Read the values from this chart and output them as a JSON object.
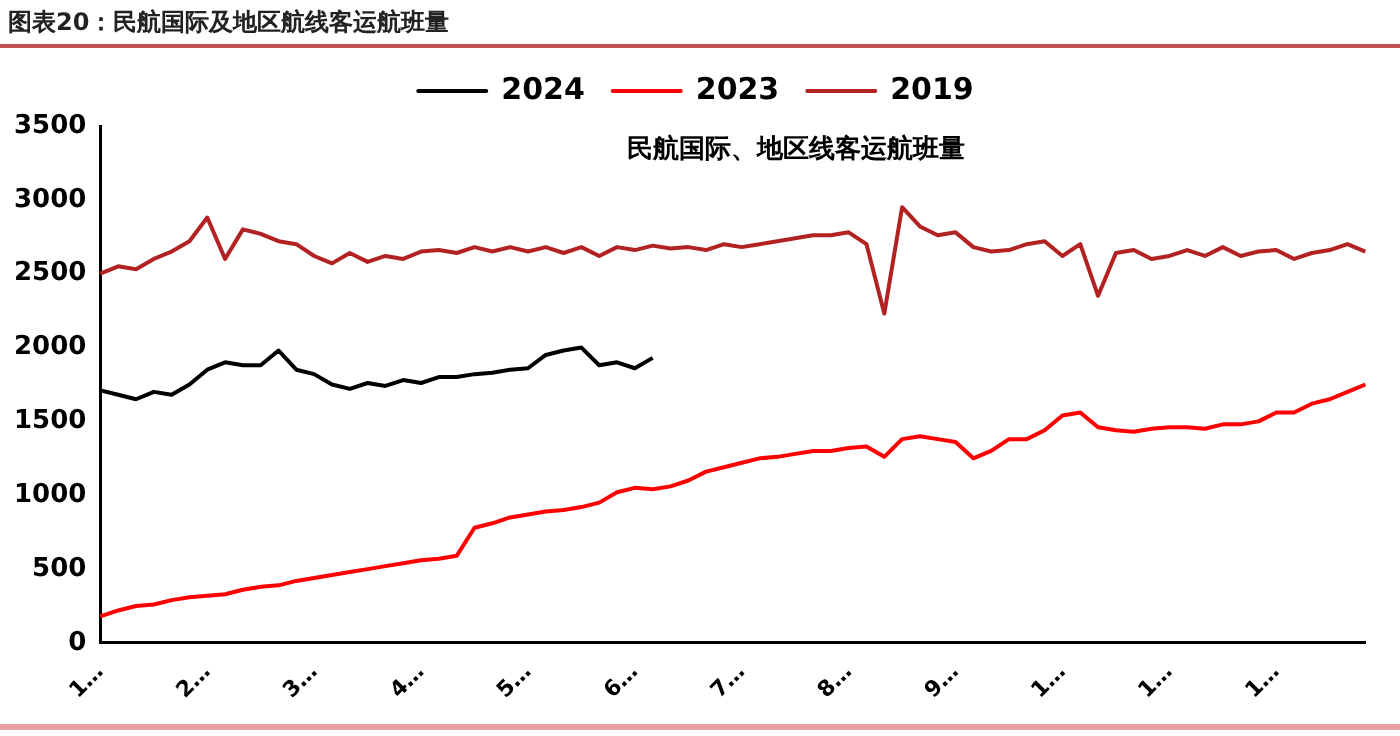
{
  "chart_data": {
    "type": "line",
    "title": "图表20：民航国际及地区航线客运航班量",
    "subtitle": "民航国际、地区线客运航班量",
    "categories": [
      "1…",
      null,
      null,
      null,
      null,
      null,
      "2…",
      null,
      null,
      null,
      null,
      null,
      "3…",
      null,
      null,
      null,
      null,
      null,
      "4…",
      null,
      null,
      null,
      null,
      null,
      "5…",
      null,
      null,
      null,
      null,
      null,
      "6…",
      null,
      null,
      null,
      null,
      null,
      "7…",
      null,
      null,
      null,
      null,
      null,
      "8…",
      null,
      null,
      null,
      null,
      null,
      "9…",
      null,
      null,
      null,
      null,
      null,
      "1…",
      null,
      null,
      null,
      null,
      null,
      "1…",
      null,
      null,
      null,
      null,
      null,
      "1…",
      null,
      null,
      null,
      null,
      null
    ],
    "series": [
      {
        "name": "2024",
        "color": "#000000",
        "values": [
          1710,
          1680,
          1650,
          1700,
          1680,
          1750,
          1850,
          1900,
          1880,
          1880,
          1980,
          1850,
          1820,
          1750,
          1720,
          1760,
          1740,
          1780,
          1760,
          1800,
          1800,
          1820,
          1830,
          1850,
          1860,
          1950,
          1980,
          2000,
          1880,
          1900,
          1860,
          1930,
          null,
          null,
          null,
          null,
          null,
          null,
          null,
          null,
          null,
          null,
          null,
          null,
          null,
          null,
          null,
          null,
          null,
          null,
          null,
          null,
          null,
          null,
          null,
          null,
          null,
          null,
          null,
          null,
          null,
          null,
          null,
          null,
          null,
          null,
          null,
          null,
          null,
          null,
          null,
          null
        ]
      },
      {
        "name": "2023",
        "color": "#ff0000",
        "values": [
          180,
          220,
          250,
          260,
          290,
          310,
          320,
          330,
          360,
          380,
          390,
          420,
          440,
          460,
          480,
          500,
          520,
          540,
          560,
          570,
          590,
          780,
          810,
          850,
          870,
          890,
          900,
          920,
          950,
          1020,
          1050,
          1040,
          1060,
          1100,
          1160,
          1190,
          1220,
          1250,
          1260,
          1280,
          1300,
          1300,
          1320,
          1330,
          1260,
          1380,
          1400,
          1380,
          1360,
          1250,
          1300,
          1380,
          1380,
          1440,
          1540,
          1560,
          1460,
          1440,
          1430,
          1450,
          1460,
          1460,
          1450,
          1480,
          1480,
          1500,
          1560,
          1560,
          1620,
          1650,
          1700,
          1750
        ]
      },
      {
        "name": "2019",
        "color": "#b22222",
        "values": [
          2500,
          2550,
          2530,
          2600,
          2650,
          2720,
          2880,
          2600,
          2800,
          2770,
          2720,
          2700,
          2620,
          2570,
          2640,
          2580,
          2620,
          2600,
          2650,
          2660,
          2640,
          2680,
          2650,
          2680,
          2650,
          2680,
          2640,
          2680,
          2620,
          2680,
          2660,
          2690,
          2670,
          2680,
          2660,
          2700,
          2680,
          2700,
          2720,
          2740,
          2760,
          2760,
          2780,
          2700,
          2230,
          2950,
          2820,
          2760,
          2780,
          2680,
          2650,
          2660,
          2700,
          2720,
          2620,
          2700,
          2350,
          2640,
          2660,
          2600,
          2620,
          2660,
          2620,
          2680,
          2620,
          2650,
          2660,
          2600,
          2640,
          2660,
          2700,
          2650
        ]
      }
    ],
    "ylim": [
      0,
      3500
    ],
    "yticks": [
      0,
      500,
      1000,
      1500,
      2000,
      2500,
      3000,
      3500
    ],
    "grid": false,
    "legend": "top",
    "marker": "none",
    "line_style": "solid"
  }
}
